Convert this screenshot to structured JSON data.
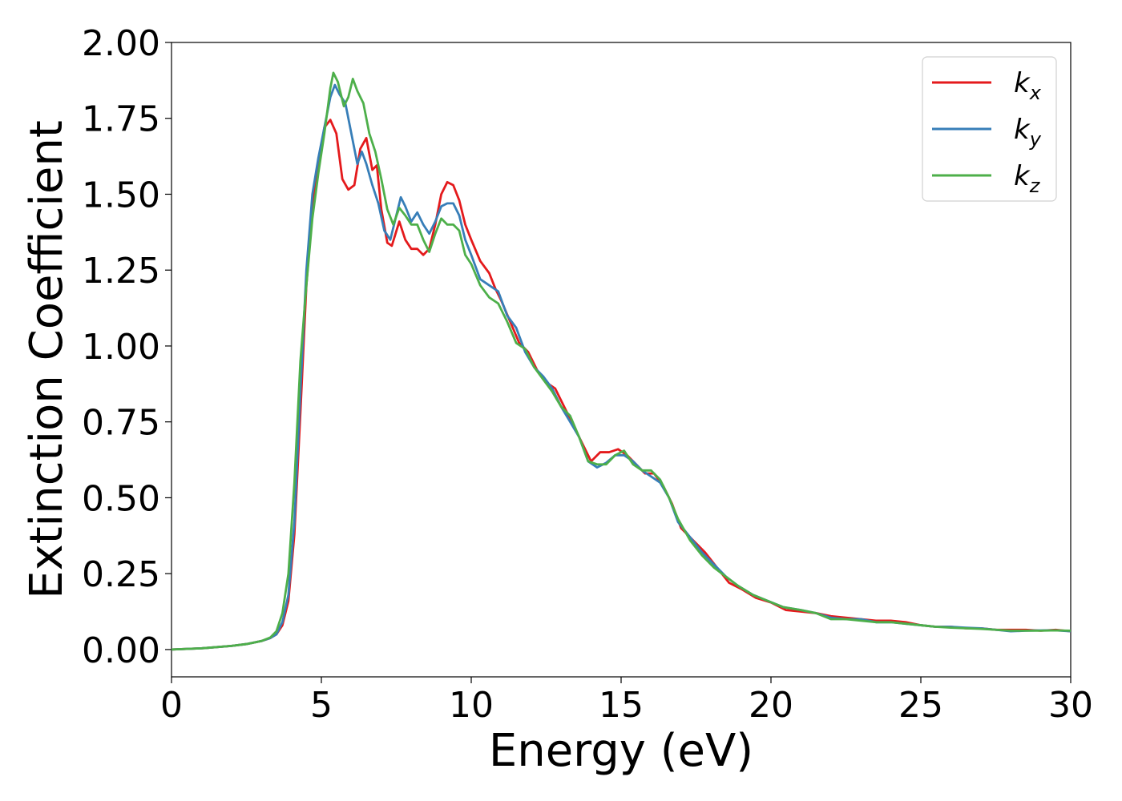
{
  "chart_data": {
    "type": "line",
    "xlabel": "Energy (eV)",
    "ylabel": "Extinction Coefficient",
    "xlim": [
      0,
      30
    ],
    "ylim": [
      -0.09,
      2.0
    ],
    "xticks": [
      0,
      5,
      10,
      15,
      20,
      25,
      30
    ],
    "xtick_labels": [
      "0",
      "5",
      "10",
      "15",
      "20",
      "25",
      "30"
    ],
    "yticks": [
      0,
      0.25,
      0.5,
      0.75,
      1.0,
      1.25,
      1.5,
      1.75,
      2.0
    ],
    "ytick_labels": [
      "0.00",
      "0.25",
      "0.50",
      "0.75",
      "1.00",
      "1.25",
      "1.50",
      "1.75",
      "2.00"
    ],
    "grid": false,
    "legend_position": "top-right",
    "series": [
      {
        "name": "k",
        "subscript": "x",
        "color": "#e41a1c",
        "points": [
          [
            0,
            0.0
          ],
          [
            1,
            0.004
          ],
          [
            2,
            0.012
          ],
          [
            2.5,
            0.018
          ],
          [
            3,
            0.028
          ],
          [
            3.3,
            0.038
          ],
          [
            3.5,
            0.05
          ],
          [
            3.7,
            0.08
          ],
          [
            3.9,
            0.16
          ],
          [
            4.1,
            0.38
          ],
          [
            4.3,
            0.78
          ],
          [
            4.5,
            1.2
          ],
          [
            4.7,
            1.45
          ],
          [
            4.9,
            1.6
          ],
          [
            5.1,
            1.72
          ],
          [
            5.3,
            1.745
          ],
          [
            5.5,
            1.7
          ],
          [
            5.7,
            1.55
          ],
          [
            5.9,
            1.515
          ],
          [
            6.1,
            1.53
          ],
          [
            6.3,
            1.65
          ],
          [
            6.5,
            1.685
          ],
          [
            6.7,
            1.58
          ],
          [
            6.85,
            1.595
          ],
          [
            7,
            1.45
          ],
          [
            7.2,
            1.34
          ],
          [
            7.35,
            1.33
          ],
          [
            7.6,
            1.41
          ],
          [
            7.8,
            1.35
          ],
          [
            8,
            1.32
          ],
          [
            8.2,
            1.32
          ],
          [
            8.4,
            1.3
          ],
          [
            8.6,
            1.32
          ],
          [
            8.8,
            1.4
          ],
          [
            9,
            1.5
          ],
          [
            9.2,
            1.54
          ],
          [
            9.4,
            1.53
          ],
          [
            9.6,
            1.48
          ],
          [
            9.8,
            1.4
          ],
          [
            10,
            1.35
          ],
          [
            10.3,
            1.28
          ],
          [
            10.6,
            1.24
          ],
          [
            10.8,
            1.19
          ],
          [
            11,
            1.15
          ],
          [
            11.3,
            1.08
          ],
          [
            11.6,
            1.01
          ],
          [
            11.9,
            0.98
          ],
          [
            12.2,
            0.92
          ],
          [
            12.5,
            0.88
          ],
          [
            12.8,
            0.86
          ],
          [
            13.1,
            0.8
          ],
          [
            13.4,
            0.74
          ],
          [
            13.7,
            0.68
          ],
          [
            14.0,
            0.62
          ],
          [
            14.3,
            0.65
          ],
          [
            14.6,
            0.65
          ],
          [
            14.9,
            0.66
          ],
          [
            15.2,
            0.64
          ],
          [
            15.5,
            0.61
          ],
          [
            15.8,
            0.58
          ],
          [
            16.1,
            0.58
          ],
          [
            16.4,
            0.54
          ],
          [
            16.7,
            0.48
          ],
          [
            17.0,
            0.4
          ],
          [
            17.4,
            0.36
          ],
          [
            17.8,
            0.32
          ],
          [
            18.2,
            0.27
          ],
          [
            18.6,
            0.22
          ],
          [
            19.0,
            0.2
          ],
          [
            19.5,
            0.17
          ],
          [
            20,
            0.155
          ],
          [
            20.5,
            0.13
          ],
          [
            21,
            0.125
          ],
          [
            21.5,
            0.12
          ],
          [
            22,
            0.11
          ],
          [
            22.5,
            0.105
          ],
          [
            23,
            0.1
          ],
          [
            23.5,
            0.095
          ],
          [
            24,
            0.095
          ],
          [
            24.5,
            0.09
          ],
          [
            25,
            0.08
          ],
          [
            25.5,
            0.075
          ],
          [
            26,
            0.075
          ],
          [
            26.5,
            0.07
          ],
          [
            27,
            0.07
          ],
          [
            27.5,
            0.065
          ],
          [
            28,
            0.065
          ],
          [
            28.5,
            0.065
          ],
          [
            29,
            0.062
          ],
          [
            29.5,
            0.065
          ],
          [
            30,
            0.06
          ]
        ]
      },
      {
        "name": "k",
        "subscript": "y",
        "color": "#377eb8",
        "points": [
          [
            0,
            0.0
          ],
          [
            1,
            0.004
          ],
          [
            2,
            0.012
          ],
          [
            2.5,
            0.018
          ],
          [
            3,
            0.028
          ],
          [
            3.3,
            0.038
          ],
          [
            3.5,
            0.05
          ],
          [
            3.7,
            0.09
          ],
          [
            3.9,
            0.18
          ],
          [
            4.1,
            0.42
          ],
          [
            4.3,
            0.85
          ],
          [
            4.5,
            1.25
          ],
          [
            4.7,
            1.5
          ],
          [
            4.9,
            1.62
          ],
          [
            5.1,
            1.72
          ],
          [
            5.3,
            1.82
          ],
          [
            5.45,
            1.86
          ],
          [
            5.6,
            1.83
          ],
          [
            5.8,
            1.8
          ],
          [
            6.0,
            1.7
          ],
          [
            6.2,
            1.6
          ],
          [
            6.35,
            1.64
          ],
          [
            6.5,
            1.6
          ],
          [
            6.7,
            1.53
          ],
          [
            6.9,
            1.47
          ],
          [
            7.1,
            1.38
          ],
          [
            7.3,
            1.35
          ],
          [
            7.5,
            1.43
          ],
          [
            7.65,
            1.49
          ],
          [
            7.8,
            1.46
          ],
          [
            8.0,
            1.41
          ],
          [
            8.2,
            1.44
          ],
          [
            8.4,
            1.4
          ],
          [
            8.6,
            1.37
          ],
          [
            8.8,
            1.41
          ],
          [
            9.0,
            1.46
          ],
          [
            9.2,
            1.47
          ],
          [
            9.4,
            1.47
          ],
          [
            9.6,
            1.43
          ],
          [
            9.8,
            1.35
          ],
          [
            10,
            1.3
          ],
          [
            10.3,
            1.22
          ],
          [
            10.6,
            1.2
          ],
          [
            10.9,
            1.18
          ],
          [
            11.2,
            1.1
          ],
          [
            11.5,
            1.06
          ],
          [
            11.8,
            0.98
          ],
          [
            12.1,
            0.93
          ],
          [
            12.4,
            0.9
          ],
          [
            12.7,
            0.86
          ],
          [
            13.0,
            0.8
          ],
          [
            13.3,
            0.75
          ],
          [
            13.6,
            0.7
          ],
          [
            13.9,
            0.62
          ],
          [
            14.2,
            0.6
          ],
          [
            14.5,
            0.615
          ],
          [
            14.8,
            0.64
          ],
          [
            15.1,
            0.64
          ],
          [
            15.4,
            0.62
          ],
          [
            15.7,
            0.59
          ],
          [
            16.0,
            0.57
          ],
          [
            16.3,
            0.55
          ],
          [
            16.6,
            0.5
          ],
          [
            16.9,
            0.42
          ],
          [
            17.3,
            0.37
          ],
          [
            17.7,
            0.32
          ],
          [
            18.1,
            0.28
          ],
          [
            18.5,
            0.24
          ],
          [
            18.9,
            0.21
          ],
          [
            19.4,
            0.18
          ],
          [
            19.9,
            0.16
          ],
          [
            20.4,
            0.14
          ],
          [
            21,
            0.13
          ],
          [
            21.5,
            0.12
          ],
          [
            22,
            0.105
          ],
          [
            22.5,
            0.1
          ],
          [
            23,
            0.1
          ],
          [
            23.5,
            0.09
          ],
          [
            24,
            0.09
          ],
          [
            24.5,
            0.085
          ],
          [
            25,
            0.08
          ],
          [
            25.5,
            0.075
          ],
          [
            26,
            0.075
          ],
          [
            26.5,
            0.072
          ],
          [
            27,
            0.07
          ],
          [
            27.5,
            0.065
          ],
          [
            28,
            0.06
          ],
          [
            28.5,
            0.062
          ],
          [
            29,
            0.063
          ],
          [
            29.5,
            0.063
          ],
          [
            30,
            0.06
          ]
        ]
      },
      {
        "name": "k",
        "subscript": "z",
        "color": "#4daf4a",
        "points": [
          [
            0,
            0.0
          ],
          [
            1,
            0.004
          ],
          [
            2,
            0.012
          ],
          [
            2.5,
            0.018
          ],
          [
            3,
            0.028
          ],
          [
            3.3,
            0.04
          ],
          [
            3.5,
            0.06
          ],
          [
            3.7,
            0.12
          ],
          [
            3.9,
            0.25
          ],
          [
            4.1,
            0.55
          ],
          [
            4.3,
            0.95
          ],
          [
            4.5,
            1.2
          ],
          [
            4.7,
            1.42
          ],
          [
            4.9,
            1.57
          ],
          [
            5.1,
            1.7
          ],
          [
            5.3,
            1.85
          ],
          [
            5.4,
            1.9
          ],
          [
            5.55,
            1.87
          ],
          [
            5.75,
            1.79
          ],
          [
            5.9,
            1.82
          ],
          [
            6.05,
            1.88
          ],
          [
            6.2,
            1.84
          ],
          [
            6.4,
            1.8
          ],
          [
            6.6,
            1.7
          ],
          [
            6.8,
            1.64
          ],
          [
            7.0,
            1.55
          ],
          [
            7.2,
            1.45
          ],
          [
            7.4,
            1.4
          ],
          [
            7.6,
            1.455
          ],
          [
            7.8,
            1.43
          ],
          [
            8.0,
            1.4
          ],
          [
            8.2,
            1.4
          ],
          [
            8.4,
            1.35
          ],
          [
            8.6,
            1.31
          ],
          [
            8.8,
            1.37
          ],
          [
            9.0,
            1.42
          ],
          [
            9.2,
            1.4
          ],
          [
            9.4,
            1.4
          ],
          [
            9.6,
            1.38
          ],
          [
            9.8,
            1.3
          ],
          [
            10,
            1.27
          ],
          [
            10.3,
            1.2
          ],
          [
            10.6,
            1.16
          ],
          [
            10.9,
            1.14
          ],
          [
            11.2,
            1.08
          ],
          [
            11.5,
            1.01
          ],
          [
            11.8,
            0.99
          ],
          [
            12.1,
            0.93
          ],
          [
            12.4,
            0.89
          ],
          [
            12.7,
            0.85
          ],
          [
            13.0,
            0.8
          ],
          [
            13.3,
            0.77
          ],
          [
            13.6,
            0.7
          ],
          [
            13.9,
            0.62
          ],
          [
            14.2,
            0.61
          ],
          [
            14.5,
            0.61
          ],
          [
            14.8,
            0.64
          ],
          [
            15.1,
            0.655
          ],
          [
            15.4,
            0.61
          ],
          [
            15.7,
            0.59
          ],
          [
            16.0,
            0.59
          ],
          [
            16.3,
            0.56
          ],
          [
            16.6,
            0.5
          ],
          [
            16.9,
            0.43
          ],
          [
            17.3,
            0.36
          ],
          [
            17.7,
            0.31
          ],
          [
            18.1,
            0.27
          ],
          [
            18.5,
            0.24
          ],
          [
            18.9,
            0.21
          ],
          [
            19.4,
            0.18
          ],
          [
            19.9,
            0.16
          ],
          [
            20.4,
            0.14
          ],
          [
            21,
            0.13
          ],
          [
            21.5,
            0.12
          ],
          [
            22,
            0.1
          ],
          [
            22.5,
            0.1
          ],
          [
            23,
            0.095
          ],
          [
            23.5,
            0.09
          ],
          [
            24,
            0.09
          ],
          [
            24.5,
            0.085
          ],
          [
            25,
            0.08
          ],
          [
            25.5,
            0.075
          ],
          [
            26,
            0.072
          ],
          [
            26.5,
            0.07
          ],
          [
            27,
            0.068
          ],
          [
            27.5,
            0.065
          ],
          [
            28,
            0.062
          ],
          [
            28.5,
            0.062
          ],
          [
            29,
            0.062
          ],
          [
            29.5,
            0.063
          ],
          [
            30,
            0.062
          ]
        ]
      }
    ]
  }
}
